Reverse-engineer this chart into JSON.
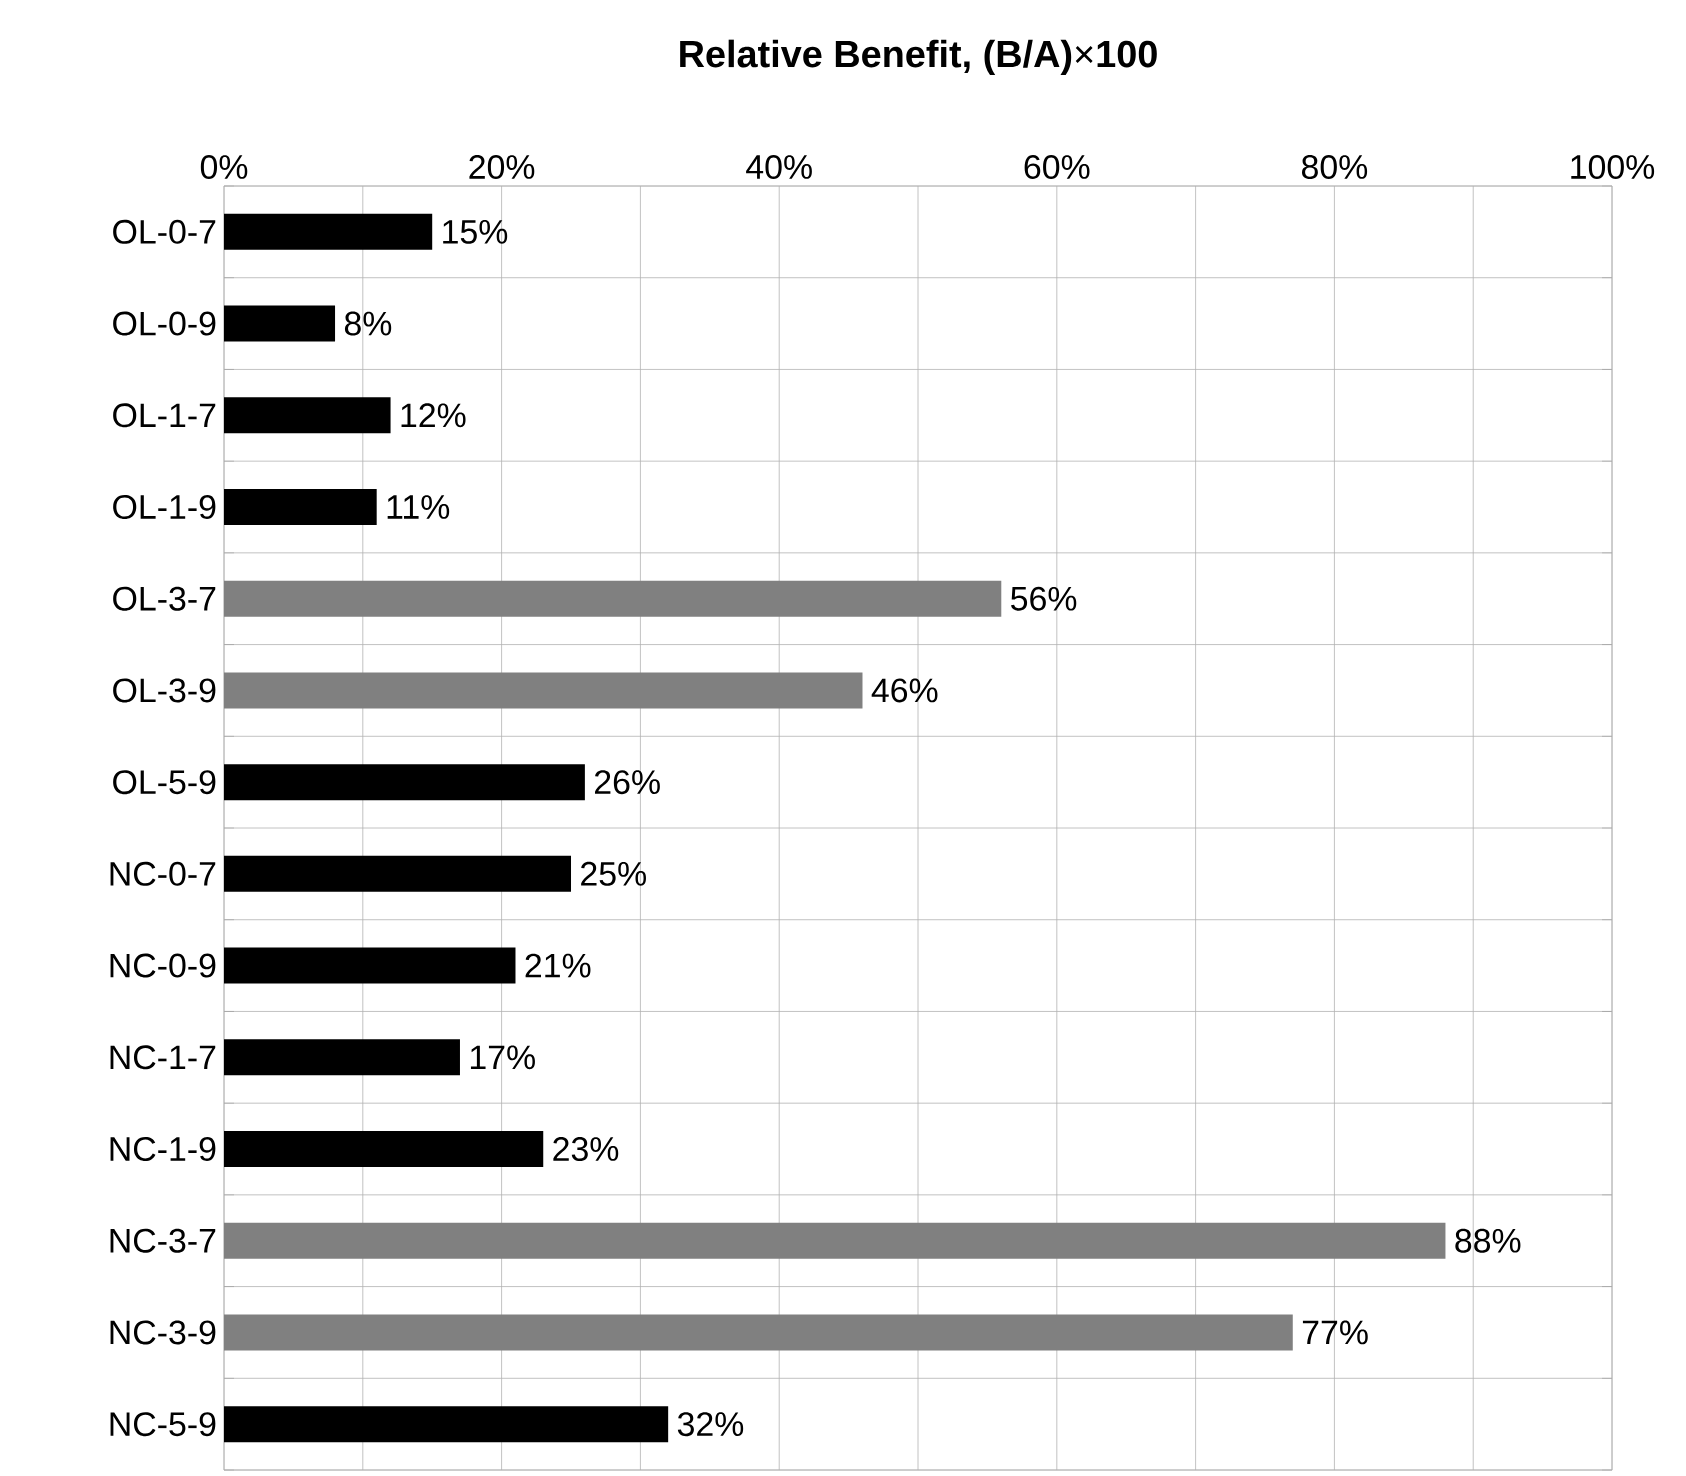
{
  "chart_data": {
    "type": "bar",
    "orientation": "horizontal",
    "xlabel": "**Relative Benefit, (B/A)**×**100**",
    "categories": [
      "OL-0-7",
      "OL-0-9",
      "OL-1-7",
      "OL-1-9",
      "OL-3-7",
      "OL-3-9",
      "OL-5-9",
      "NC-0-7",
      "NC-0-9",
      "NC-1-7",
      "NC-1-9",
      "NC-3-7",
      "NC-3-9",
      "NC-5-9"
    ],
    "values": [
      15,
      8,
      12,
      11,
      56,
      46,
      26,
      25,
      21,
      17,
      23,
      88,
      77,
      32
    ],
    "value_labels": [
      "15%",
      "8%",
      "12%",
      "11%",
      "56%",
      "46%",
      "26%",
      "25%",
      "21%",
      "17%",
      "23%",
      "88%",
      "77%",
      "32%"
    ],
    "colors": [
      "#000000",
      "#000000",
      "#000000",
      "#000000",
      "#808080",
      "#808080",
      "#000000",
      "#000000",
      "#000000",
      "#000000",
      "#000000",
      "#808080",
      "#808080",
      "#000000"
    ],
    "xlim": [
      0,
      100
    ],
    "xticks": [
      {
        "value": 0,
        "label": "0%"
      },
      {
        "value": 10,
        "label": null
      },
      {
        "value": 20,
        "label": "20%"
      },
      {
        "value": 30,
        "label": null
      },
      {
        "value": 40,
        "label": "40%"
      },
      {
        "value": 50,
        "label": null
      },
      {
        "value": 60,
        "label": "60%"
      },
      {
        "value": 70,
        "label": null
      },
      {
        "value": 80,
        "label": "80%"
      },
      {
        "value": 90,
        "label": null
      },
      {
        "value": 100,
        "label": "100%"
      }
    ],
    "grid": true
  }
}
